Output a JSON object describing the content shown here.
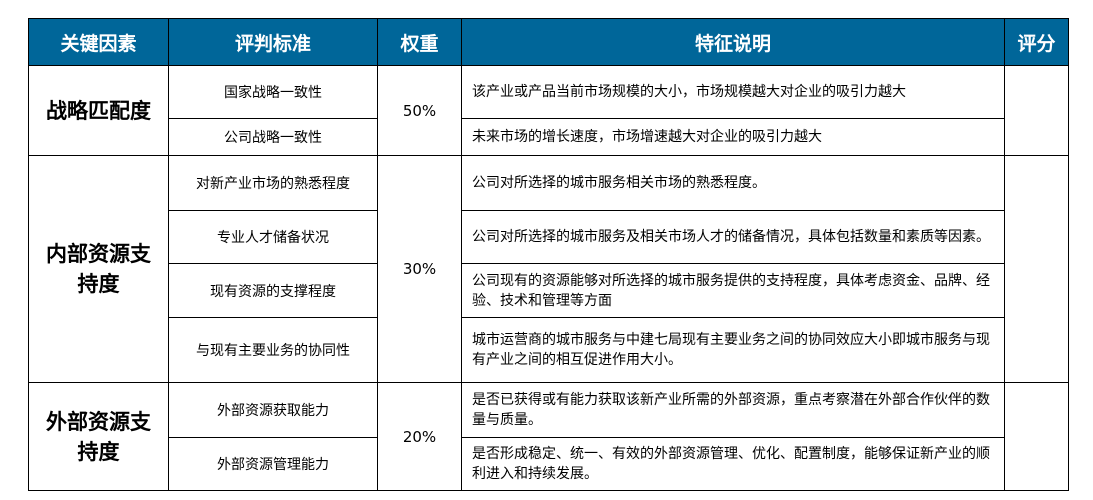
{
  "headers": [
    "关键因素",
    "评判标准",
    "权重",
    "特征说明",
    "评分"
  ],
  "groups": [
    {
      "factor": "战略匹配度",
      "weight": "50%",
      "rows": [
        {
          "criterion": "国家战略一致性",
          "description": "该产业或产品当前市场规模的大小，市场规模越大对企业的吸引力越大"
        },
        {
          "criterion": "公司战略一致性",
          "description": "未来市场的增长速度，市场增速越大对企业的吸引力越大"
        }
      ]
    },
    {
      "factor": "内部资源支持度",
      "weight": "30%",
      "rows": [
        {
          "criterion": "对新产业市场的熟悉程度",
          "description": "公司对所选择的城市服务相关市场的熟悉程度。"
        },
        {
          "criterion": "专业人才储备状况",
          "description": "公司对所选择的城市服务及相关市场人才的储备情况，具体包括数量和素质等因素。"
        },
        {
          "criterion": "现有资源的支撑程度",
          "description": "公司现有的资源能够对所选择的城市服务提供的支持程度，具体考虑资金、品牌、经验、技术和管理等方面"
        },
        {
          "criterion": "与现有主要业务的协同性",
          "description": "城市运营商的城市服务与中建七局现有主要业务之间的协同效应大小即城市服务与现有产业之间的相互促进作用大小。"
        }
      ]
    },
    {
      "factor": "外部资源支持度",
      "weight": "20%",
      "rows": [
        {
          "criterion": "外部资源获取能力",
          "description": "是否已获得或有能力获取该新产业所需的外部资源，重点考察潜在外部合作伙伴的数量与质量。"
        },
        {
          "criterion": "外部资源管理能力",
          "description": "是否形成稳定、统一、有效的外部资源管理、优化、配置制度，能够保证新产业的顺利进入和持续发展。"
        }
      ]
    }
  ],
  "colors": {
    "header_bg": "#006699",
    "header_text": "#ffffff"
  }
}
